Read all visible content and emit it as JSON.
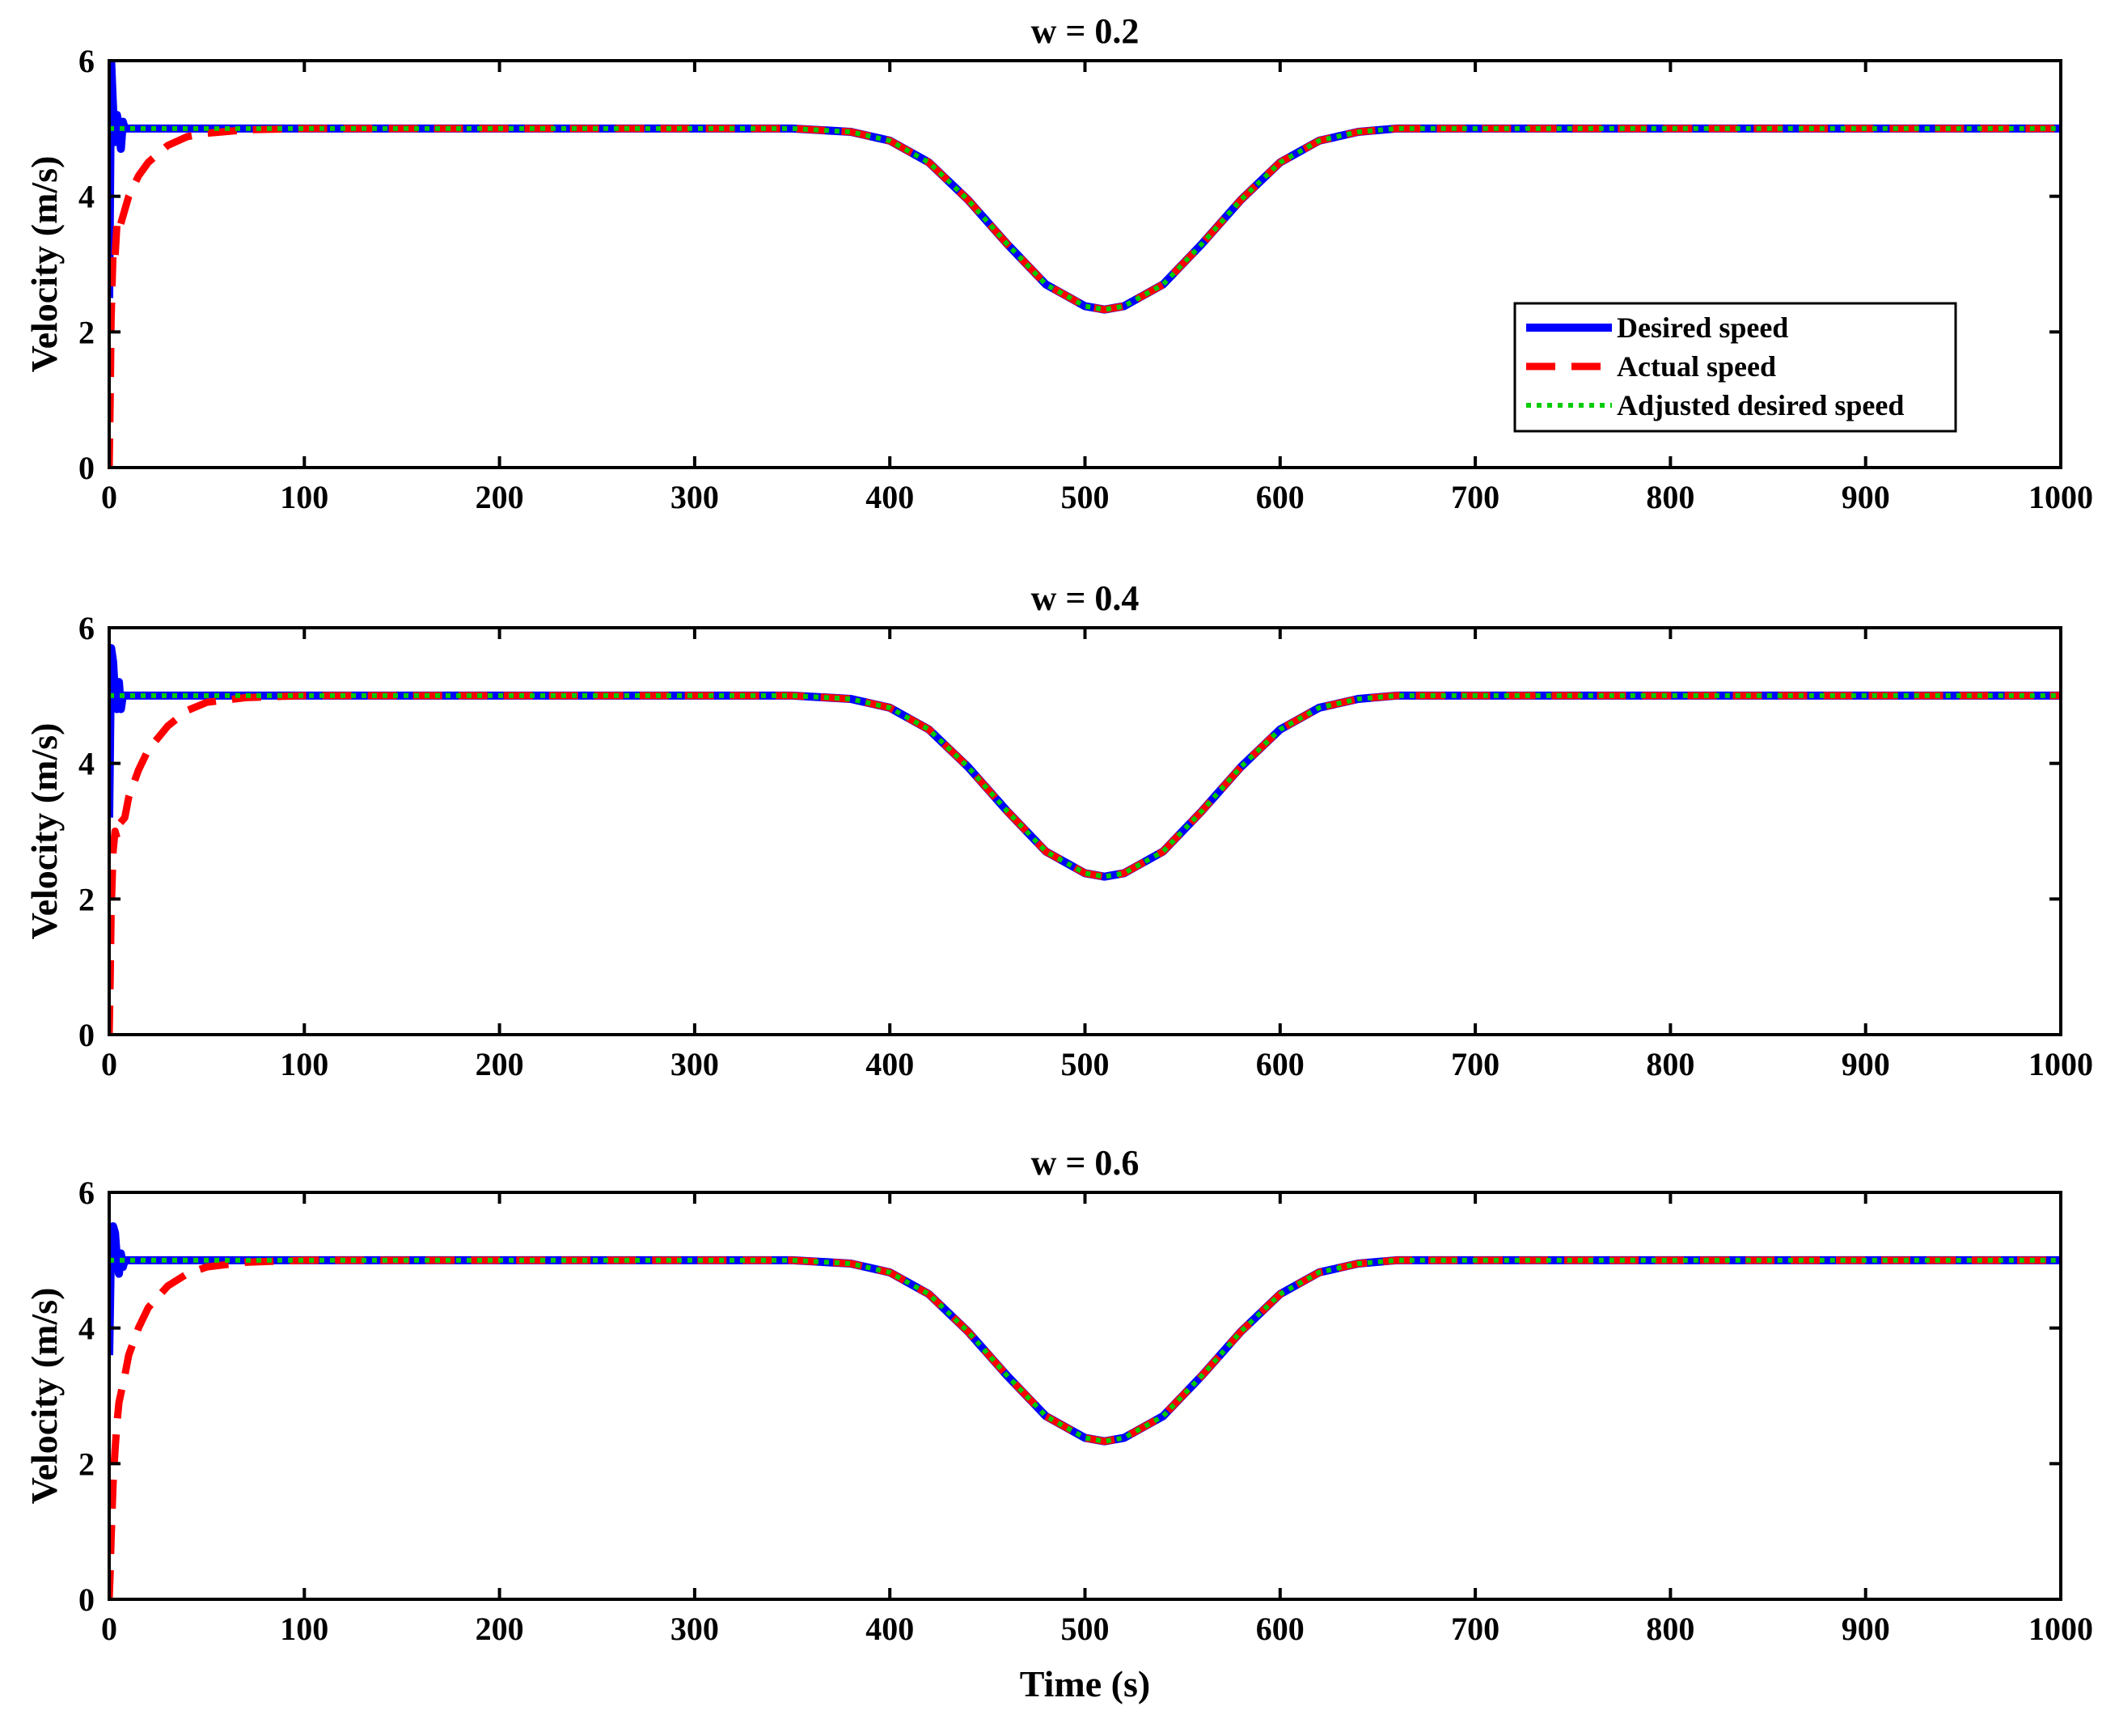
{
  "chart_data": [
    {
      "type": "line",
      "title": "w = 0.2",
      "xlabel": "",
      "ylabel": "Velocity (m/s)",
      "xlim": [
        0,
        1000
      ],
      "ylim": [
        0,
        6
      ],
      "xticks": [
        "0",
        "100",
        "200",
        "300",
        "400",
        "500",
        "600",
        "700",
        "800",
        "900",
        "1000"
      ],
      "yticks": [
        "0",
        "2",
        "4",
        "6"
      ],
      "legend": {
        "placement": "inside-right",
        "entries": [
          "Desired speed",
          "Actual speed",
          "Adjusted desired speed"
        ]
      },
      "series": [
        {
          "name": "Desired speed",
          "color": "#0000ff",
          "style": "solid",
          "x": [
            0,
            1,
            2,
            3,
            4,
            5,
            6,
            7,
            8,
            10,
            20,
            50,
            100,
            200,
            300,
            350,
            380,
            400,
            420,
            440,
            460,
            480,
            500,
            510,
            520,
            540,
            560,
            580,
            600,
            620,
            640,
            660,
            700,
            800,
            900,
            1000
          ],
          "y": [
            2.5,
            6.0,
            5.3,
            4.8,
            5.2,
            5.0,
            4.7,
            5.1,
            5.0,
            5.0,
            5.0,
            5.0,
            5.0,
            5.0,
            5.0,
            5.0,
            4.95,
            4.82,
            4.5,
            3.95,
            3.3,
            2.7,
            2.38,
            2.33,
            2.38,
            2.7,
            3.3,
            3.95,
            4.5,
            4.82,
            4.95,
            5.0,
            5.0,
            5.0,
            5.0,
            5.0
          ]
        },
        {
          "name": "Actual speed",
          "color": "#ff0000",
          "style": "dashed",
          "x": [
            0,
            0.5,
            1,
            2,
            3,
            4,
            5,
            8,
            10,
            15,
            20,
            30,
            40,
            50,
            70,
            100,
            200,
            300,
            350,
            380,
            400,
            420,
            440,
            460,
            480,
            500,
            510,
            520,
            540,
            560,
            580,
            600,
            620,
            640,
            660,
            700,
            800,
            900,
            1000
          ],
          "y": [
            0,
            1.0,
            2.2,
            3.2,
            3.1,
            3.6,
            3.5,
            3.8,
            4.0,
            4.3,
            4.5,
            4.75,
            4.88,
            4.93,
            4.98,
            5.0,
            5.0,
            5.0,
            5.0,
            4.95,
            4.82,
            4.5,
            3.95,
            3.3,
            2.7,
            2.38,
            2.33,
            2.38,
            2.7,
            3.3,
            3.95,
            4.5,
            4.82,
            4.95,
            5.0,
            5.0,
            5.0,
            5.0,
            5.0
          ]
        },
        {
          "name": "Adjusted desired speed",
          "color": "#00cc00",
          "style": "dotted",
          "x": [
            0,
            100,
            200,
            300,
            350,
            380,
            400,
            420,
            440,
            460,
            480,
            500,
            510,
            520,
            540,
            560,
            580,
            600,
            620,
            640,
            660,
            700,
            800,
            900,
            1000
          ],
          "y": [
            5.0,
            5.0,
            5.0,
            5.0,
            5.0,
            4.95,
            4.82,
            4.5,
            3.95,
            3.3,
            2.7,
            2.38,
            2.33,
            2.38,
            2.7,
            3.3,
            3.95,
            4.5,
            4.82,
            4.95,
            5.0,
            5.0,
            5.0,
            5.0,
            5.0
          ]
        }
      ]
    },
    {
      "type": "line",
      "title": "w = 0.4",
      "xlabel": "",
      "ylabel": "Velocity (m/s)",
      "xlim": [
        0,
        1000
      ],
      "ylim": [
        0,
        6
      ],
      "xticks": [
        "0",
        "100",
        "200",
        "300",
        "400",
        "500",
        "600",
        "700",
        "800",
        "900",
        "1000"
      ],
      "yticks": [
        "0",
        "2",
        "4",
        "6"
      ],
      "series": [
        {
          "name": "Desired speed",
          "color": "#0000ff",
          "style": "solid",
          "x": [
            0,
            1,
            2,
            3,
            4,
            5,
            6,
            7,
            8,
            10,
            20,
            50,
            100,
            200,
            300,
            350,
            380,
            400,
            420,
            440,
            460,
            480,
            500,
            510,
            520,
            540,
            560,
            580,
            600,
            620,
            640,
            660,
            700,
            800,
            900,
            1000
          ],
          "y": [
            3.2,
            5.7,
            5.5,
            5.0,
            4.8,
            5.2,
            4.8,
            5.0,
            5.0,
            5.0,
            5.0,
            5.0,
            5.0,
            5.0,
            5.0,
            5.0,
            4.95,
            4.82,
            4.5,
            3.95,
            3.3,
            2.7,
            2.38,
            2.33,
            2.38,
            2.7,
            3.3,
            3.95,
            4.5,
            4.82,
            4.95,
            5.0,
            5.0,
            5.0,
            5.0,
            5.0
          ]
        },
        {
          "name": "Actual speed",
          "color": "#ff0000",
          "style": "dashed",
          "x": [
            0,
            0.5,
            1,
            2,
            3,
            4,
            5,
            8,
            10,
            15,
            20,
            30,
            40,
            50,
            70,
            100,
            200,
            300,
            350,
            380,
            400,
            420,
            440,
            460,
            480,
            500,
            510,
            520,
            540,
            560,
            580,
            600,
            620,
            640,
            660,
            700,
            800,
            900,
            1000
          ],
          "y": [
            0,
            0.8,
            1.8,
            2.7,
            3.0,
            2.9,
            3.1,
            3.2,
            3.5,
            3.9,
            4.2,
            4.55,
            4.78,
            4.9,
            4.97,
            5.0,
            5.0,
            5.0,
            5.0,
            4.95,
            4.82,
            4.5,
            3.95,
            3.3,
            2.7,
            2.38,
            2.33,
            2.38,
            2.7,
            3.3,
            3.95,
            4.5,
            4.82,
            4.95,
            5.0,
            5.0,
            5.0,
            5.0,
            5.0
          ]
        },
        {
          "name": "Adjusted desired speed",
          "color": "#00cc00",
          "style": "dotted",
          "x": [
            0,
            100,
            200,
            300,
            350,
            380,
            400,
            420,
            440,
            460,
            480,
            500,
            510,
            520,
            540,
            560,
            580,
            600,
            620,
            640,
            660,
            700,
            800,
            900,
            1000
          ],
          "y": [
            5.0,
            5.0,
            5.0,
            5.0,
            5.0,
            4.95,
            4.82,
            4.5,
            3.95,
            3.3,
            2.7,
            2.38,
            2.33,
            2.38,
            2.7,
            3.3,
            3.95,
            4.5,
            4.82,
            4.95,
            5.0,
            5.0,
            5.0,
            5.0,
            5.0
          ]
        }
      ]
    },
    {
      "type": "line",
      "title": "w = 0.6",
      "xlabel": "Time (s)",
      "ylabel": "Velocity (m/s)",
      "xlim": [
        0,
        1000
      ],
      "ylim": [
        0,
        6
      ],
      "xticks": [
        "0",
        "100",
        "200",
        "300",
        "400",
        "500",
        "600",
        "700",
        "800",
        "900",
        "1000"
      ],
      "yticks": [
        "0",
        "2",
        "4",
        "6"
      ],
      "series": [
        {
          "name": "Desired speed",
          "color": "#0000ff",
          "style": "solid",
          "x": [
            0,
            1,
            2,
            3,
            4,
            5,
            6,
            7,
            8,
            10,
            20,
            50,
            100,
            200,
            300,
            350,
            380,
            400,
            420,
            440,
            460,
            480,
            500,
            510,
            520,
            540,
            560,
            580,
            600,
            620,
            640,
            660,
            700,
            800,
            900,
            1000
          ],
          "y": [
            3.6,
            5.3,
            5.5,
            5.4,
            5.0,
            4.8,
            5.1,
            4.9,
            5.0,
            5.0,
            5.0,
            5.0,
            5.0,
            5.0,
            5.0,
            5.0,
            4.95,
            4.82,
            4.5,
            3.95,
            3.3,
            2.7,
            2.38,
            2.33,
            2.38,
            2.7,
            3.3,
            3.95,
            4.5,
            4.82,
            4.95,
            5.0,
            5.0,
            5.0,
            5.0,
            5.0
          ]
        },
        {
          "name": "Actual speed",
          "color": "#ff0000",
          "style": "dashed",
          "x": [
            0,
            0.5,
            1,
            2,
            3,
            4,
            5,
            8,
            10,
            15,
            20,
            30,
            40,
            50,
            70,
            100,
            200,
            300,
            350,
            380,
            400,
            420,
            440,
            460,
            480,
            500,
            510,
            520,
            540,
            560,
            580,
            600,
            620,
            640,
            660,
            700,
            800,
            900,
            1000
          ],
          "y": [
            0,
            0.4,
            0.9,
            1.7,
            2.2,
            2.6,
            2.9,
            3.3,
            3.6,
            4.0,
            4.3,
            4.62,
            4.8,
            4.9,
            4.97,
            5.0,
            5.0,
            5.0,
            5.0,
            4.95,
            4.82,
            4.5,
            3.95,
            3.3,
            2.7,
            2.38,
            2.33,
            2.38,
            2.7,
            3.3,
            3.95,
            4.5,
            4.82,
            4.95,
            5.0,
            5.0,
            5.0,
            5.0,
            5.0
          ]
        },
        {
          "name": "Adjusted desired speed",
          "color": "#00cc00",
          "style": "dotted",
          "x": [
            0,
            100,
            200,
            300,
            350,
            380,
            400,
            420,
            440,
            460,
            480,
            500,
            510,
            520,
            540,
            560,
            580,
            600,
            620,
            640,
            660,
            700,
            800,
            900,
            1000
          ],
          "y": [
            5.0,
            5.0,
            5.0,
            5.0,
            5.0,
            4.95,
            4.82,
            4.5,
            3.95,
            3.3,
            2.7,
            2.38,
            2.33,
            2.38,
            2.7,
            3.3,
            3.95,
            4.5,
            4.82,
            4.95,
            5.0,
            5.0,
            5.0,
            5.0,
            5.0
          ]
        }
      ]
    }
  ]
}
